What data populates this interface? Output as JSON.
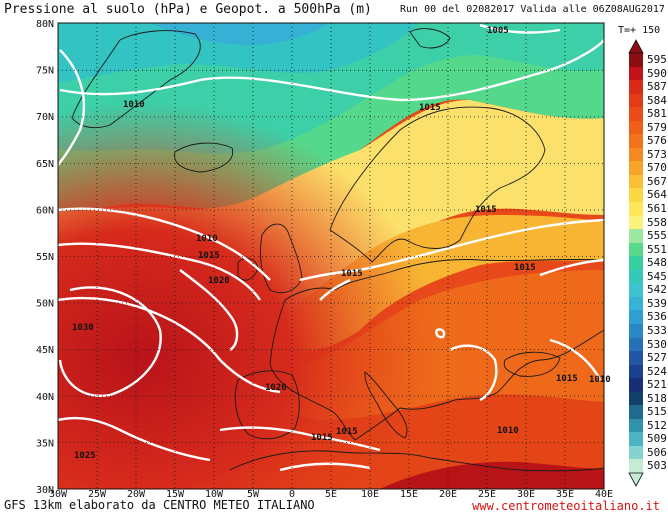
{
  "header": {
    "title": "Pressione al suolo (hPa) e Geopot. a 500hPa (m)",
    "run_info": "Run 00 del 02082017  Valida alle 06Z08AUG2017"
  },
  "forecast_step": "T=+ 150",
  "footer": {
    "left": "GFS 13km elaborato da CENTRO METEO ITALIANO",
    "right": "www.centrometeoitaliano.it"
  },
  "axes": {
    "lat_ticks": [
      "80N",
      "75N",
      "70N",
      "65N",
      "60N",
      "55N",
      "50N",
      "45N",
      "40N",
      "35N",
      "30N"
    ],
    "lon_ticks": [
      "30W",
      "25W",
      "20W",
      "15W",
      "10W",
      "5W",
      "0",
      "5E",
      "10E",
      "15E",
      "20E",
      "25E",
      "30E",
      "35E",
      "40E"
    ]
  },
  "isobars": [
    {
      "label": "1005"
    },
    {
      "label": "1010"
    },
    {
      "label": "1015"
    },
    {
      "label": "1010"
    },
    {
      "label": "1015"
    },
    {
      "label": "1020"
    },
    {
      "label": "1015"
    },
    {
      "label": "1015"
    },
    {
      "label": "1015"
    },
    {
      "label": "1030"
    },
    {
      "label": "1020"
    },
    {
      "label": "1015"
    },
    {
      "label": "1010"
    },
    {
      "label": "1010"
    },
    {
      "label": "1025"
    },
    {
      "label": "1015"
    },
    {
      "label": "1015"
    }
  ],
  "legend": {
    "values": [
      "595",
      "590",
      "587",
      "584",
      "581",
      "579",
      "576",
      "573",
      "570",
      "567",
      "564",
      "561",
      "558",
      "555",
      "551",
      "548",
      "545",
      "542",
      "539",
      "536",
      "533",
      "530",
      "527",
      "524",
      "521",
      "518",
      "515",
      "512",
      "509",
      "506",
      "503"
    ],
    "colors": [
      "#8b0f12",
      "#c2131a",
      "#d92a1a",
      "#e33b17",
      "#e94c16",
      "#ee6018",
      "#f1741c",
      "#f48a22",
      "#f7a52a",
      "#f9bf35",
      "#fbd843",
      "#fde85a",
      "#fbf279",
      "#9ce7a2",
      "#58d98c",
      "#38cfa0",
      "#36c8b8",
      "#3fc3cf",
      "#37b3d6",
      "#2f9ed0",
      "#2a86c4",
      "#2670b8",
      "#2156a4",
      "#1c4190",
      "#163073",
      "#12406a",
      "#1e6b8f",
      "#2f93ad",
      "#4cb3c2",
      "#84d3cf",
      "#c4ecd4"
    ]
  }
}
